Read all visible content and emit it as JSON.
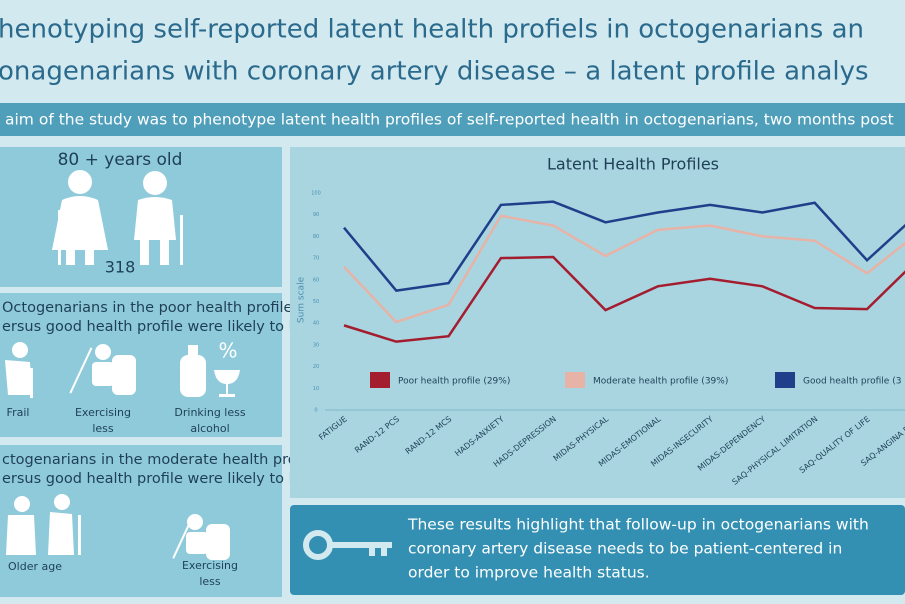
{
  "header": {
    "title": [
      "henotyping self-reported latent health profiels in octogenarians an",
      "onagenarians with coronary artery disease – a latent profile analys"
    ],
    "subtitle": "aim of the study was to phenotype latent health profiles of self-reported health in octogenarians, two months post"
  },
  "panels": [
    {
      "heading": "80 + years old",
      "count": "318"
    },
    {
      "heading": [
        "Octogenarians in the poor health profile",
        "ersus good health profile were likely to be:"
      ],
      "items": [
        "Frail",
        [
          "Exercising",
          "less"
        ],
        [
          "Drinking less",
          "alcohol"
        ]
      ],
      "icon_text": "%"
    },
    {
      "heading": [
        "ctogenarians in the moderate health profile",
        "ersus good health profile were likely to be:"
      ],
      "items": [
        "Older age",
        [
          "Exercising",
          "less"
        ]
      ]
    }
  ],
  "chart_data": {
    "type": "line",
    "title": "Latent Health Profiles",
    "y_label": "Sum scale",
    "categories": [
      "FATIGUE",
      "RAND-12 PCS",
      "RAND-12 MCS",
      "HADS-ANXIETY",
      "HADS-DEPRESSION",
      "MIDAS-PHYSICAL",
      "MIDAS-EMOTIONAL",
      "MIDAS-INSECURITY",
      "MIDAS-DEPENDENCY",
      "SAQ-PHYSICAL LIMITATION",
      "SAQ-QUALITY OF LIFE",
      "SAQ-ANGINA FREQ"
    ],
    "series": [
      {
        "name": "Poor health profile (29%)",
        "color": "#a31d2f",
        "values": [
          39,
          31.5,
          34,
          70,
          70.5,
          46,
          57,
          60.5,
          57,
          47,
          46.5,
          70
        ]
      },
      {
        "name": "Moderate health profile (39%)",
        "color": "#e6b3a6",
        "values": [
          66,
          40.5,
          48.5,
          89.5,
          85,
          71,
          83,
          85,
          80,
          78,
          63,
          82
        ]
      },
      {
        "name": "Good health profile (3",
        "color": "#1f3f8a",
        "values": [
          84,
          55,
          58.5,
          94.5,
          96,
          86.5,
          91,
          94.5,
          91,
          95.5,
          69,
          91
        ]
      }
    ],
    "ylim": [
      0,
      100
    ],
    "yticks": [
      0,
      10,
      20,
      30,
      40,
      50,
      60,
      70,
      80,
      90,
      100
    ]
  },
  "conclusion": [
    "These results highlight that follow-up in octogenarians with",
    "coronary artery disease needs to be patient-centered in",
    "order to improve health status."
  ]
}
